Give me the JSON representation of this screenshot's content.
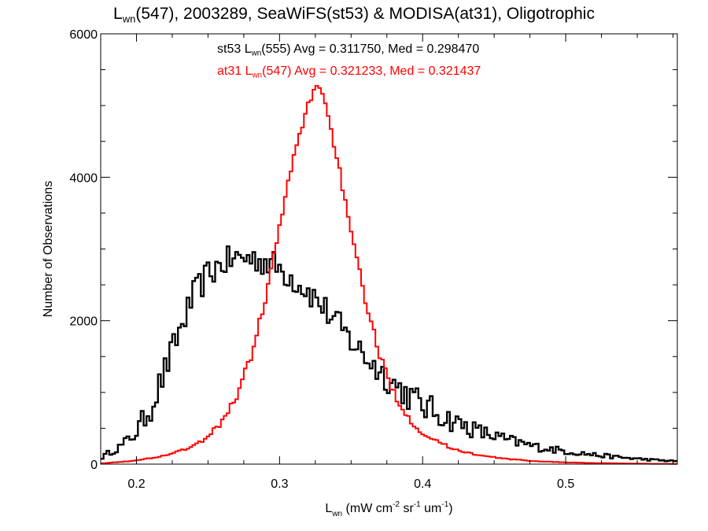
{
  "chart_data": {
    "type": "histogram",
    "title": {
      "var": "L",
      "var_sub": "wn",
      "rest": "(547), 2003289, SeaWiFS(st53) & MODISA(at31), Oligotrophic"
    },
    "xlabel": {
      "var": "L",
      "var_sub": "wn",
      "units_parts": [
        " (mW cm",
        "-2",
        " sr",
        "-1",
        " um",
        "-1",
        ")"
      ]
    },
    "ylabel": "Number of Observations",
    "xlim": [
      0.175,
      0.578
    ],
    "ylim": [
      0,
      6000
    ],
    "x_ticks": [
      0.2,
      0.3,
      0.4,
      0.5
    ],
    "x_tick_labels": [
      "0.2",
      "0.3",
      "0.4",
      "0.5"
    ],
    "y_ticks": [
      0,
      2000,
      4000,
      6000
    ],
    "y_tick_labels": [
      "0",
      "2000",
      "4000",
      "6000"
    ],
    "x_minor_step": 0.025,
    "y_minor_step": 500,
    "grid": false,
    "series": [
      {
        "name": "st53",
        "color": "#000000",
        "stat_parts": [
          "st53 L",
          "wn",
          "(555) Avg = 0.311750, Med = 0.298470"
        ],
        "x_knots": [
          0.175,
          0.18,
          0.19,
          0.2,
          0.21,
          0.22,
          0.23,
          0.24,
          0.25,
          0.26,
          0.27,
          0.275,
          0.28,
          0.29,
          0.3,
          0.31,
          0.32,
          0.33,
          0.34,
          0.35,
          0.36,
          0.37,
          0.38,
          0.39,
          0.4,
          0.42,
          0.44,
          0.46,
          0.48,
          0.5,
          0.52,
          0.54,
          0.56,
          0.578
        ],
        "y_knots": [
          80,
          150,
          260,
          450,
          800,
          1300,
          1850,
          2350,
          2650,
          2800,
          2870,
          2880,
          2870,
          2830,
          2730,
          2580,
          2420,
          2200,
          1960,
          1720,
          1500,
          1300,
          1120,
          960,
          820,
          610,
          450,
          330,
          240,
          180,
          130,
          90,
          60,
          40
        ],
        "jitter": 210
      },
      {
        "name": "at31",
        "color": "#ff0000",
        "stat_parts": [
          "at31 L",
          "wn",
          "(547) Avg = 0.321233, Med = 0.321437"
        ],
        "x_knots": [
          0.175,
          0.2,
          0.22,
          0.24,
          0.25,
          0.26,
          0.27,
          0.28,
          0.29,
          0.3,
          0.31,
          0.32,
          0.325,
          0.33,
          0.34,
          0.35,
          0.36,
          0.37,
          0.38,
          0.39,
          0.4,
          0.42,
          0.44,
          0.46,
          0.48,
          0.5,
          0.52,
          0.54,
          0.56,
          0.578
        ],
        "y_knots": [
          10,
          50,
          120,
          250,
          380,
          600,
          950,
          1500,
          2300,
          3300,
          4300,
          5000,
          5300,
          5200,
          4300,
          3200,
          2300,
          1500,
          1000,
          650,
          430,
          220,
          120,
          70,
          40,
          25,
          15,
          10,
          5,
          3
        ],
        "jitter": 60
      }
    ]
  }
}
